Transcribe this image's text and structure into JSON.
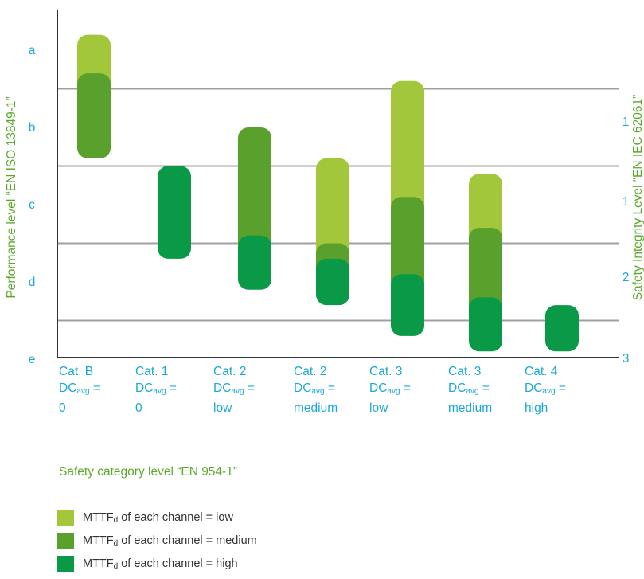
{
  "chart_data": {
    "type": "range-bar",
    "left_axis": {
      "title": "Performance level “EN ISO 13849-1”",
      "ticks": [
        "a",
        "b",
        "c",
        "d",
        "e"
      ]
    },
    "right_axis": {
      "title": "Safety Integrity Level “EN IEC 62061”",
      "ticks": [
        "1",
        "1",
        "2",
        "3"
      ]
    },
    "x_title": "Safety category level “EN 954-1”",
    "categories": [
      {
        "cat": "Cat. B",
        "dc_value": "0"
      },
      {
        "cat": "Cat. 1",
        "dc_value": "0"
      },
      {
        "cat": "Cat. 2",
        "dc_value": "low"
      },
      {
        "cat": "Cat. 2",
        "dc_value": "medium"
      },
      {
        "cat": "Cat. 3",
        "dc_value": "low"
      },
      {
        "cat": "Cat. 3",
        "dc_value": "medium"
      },
      {
        "cat": "Cat. 4",
        "dc_value": "high"
      }
    ],
    "dc_prefix": "DC",
    "dc_sub": "avg",
    "dc_suffix": " =",
    "pl_boundaries_approx": [
      1.5,
      2.5,
      3.5,
      4.5
    ],
    "series": [
      {
        "key": "low",
        "color": "#a2c73b",
        "ranges": [
          [
            0.8,
            2.0
          ],
          null,
          null,
          [
            2.4,
            4.1
          ],
          [
            1.4,
            4.4
          ],
          [
            2.6,
            4.4
          ],
          null
        ]
      },
      {
        "key": "medium",
        "color": "#5aa02c",
        "ranges": [
          [
            1.3,
            2.4
          ],
          null,
          [
            2.0,
            3.7
          ],
          [
            3.5,
            4.2
          ],
          [
            2.9,
            4.6
          ],
          [
            3.3,
            4.8
          ],
          null
        ]
      },
      {
        "key": "high",
        "color": "#0a9a47",
        "ranges": [
          null,
          [
            2.5,
            3.7
          ],
          [
            3.4,
            4.1
          ],
          [
            3.7,
            4.3
          ],
          [
            3.9,
            4.7
          ],
          [
            4.2,
            4.9
          ],
          [
            4.3,
            4.9
          ]
        ]
      }
    ],
    "legend": [
      {
        "pre": "MTTF",
        "sub": "d",
        "post": " of each channel = low"
      },
      {
        "pre": "MTTF",
        "sub": "d",
        "post": " of each channel = medium"
      },
      {
        "pre": "MTTF",
        "sub": "d",
        "post": " of each channel = high"
      }
    ],
    "colors": {
      "axis_tick": "#1aa8d8",
      "axis_title": "#5aaa2a",
      "grid": "#a0a0a0",
      "axis_line": "#333333"
    }
  }
}
